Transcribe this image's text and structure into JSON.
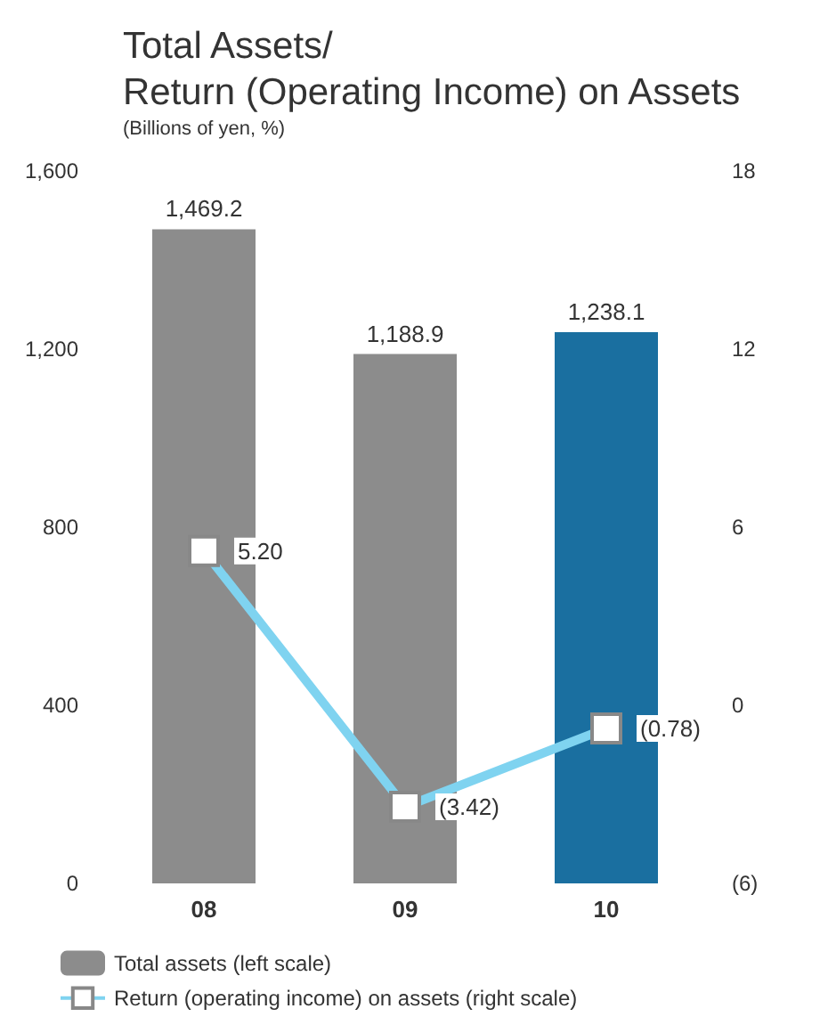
{
  "chart_data": {
    "type": "bar",
    "title": "Total Assets/\nReturn (Operating Income) on Assets",
    "subtitle": "(Billions of yen, %)",
    "categories": [
      "08",
      "09",
      "10"
    ],
    "series": [
      {
        "name": "Total assets (left scale)",
        "color": "#8c8c8c",
        "colors": [
          "#8c8c8c",
          "#8c8c8c",
          "#1a6fa0"
        ],
        "values": [
          1469.2,
          1188.9,
          1238.1
        ],
        "value_labels": [
          "1,469.2",
          "1,188.9",
          "1,238.1"
        ]
      },
      {
        "name": "Return (operating income) on assets (right scale)",
        "type": "line",
        "axis": "y2",
        "color": "#7fd3f0",
        "values": [
          5.2,
          -3.42,
          -0.78
        ],
        "value_labels": [
          "5.20",
          "(3.42)",
          "(0.78)"
        ],
        "marker": "square"
      }
    ],
    "ylim": [
      0,
      1600
    ],
    "yticks": [
      0,
      400,
      800,
      {
        "value": 1200,
        "label": "1,200"
      },
      {
        "value": 1600,
        "label": "1,600"
      }
    ],
    "y2lim": [
      -6,
      18
    ],
    "y2ticks": [
      {
        "value": -6,
        "label": "(6)"
      },
      0,
      6,
      12,
      18
    ],
    "grid": false,
    "legend": "bottom"
  }
}
